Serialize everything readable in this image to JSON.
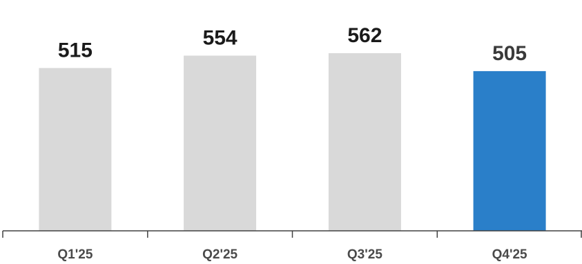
{
  "chart_data": {
    "type": "bar",
    "categories": [
      "Q1'25",
      "Q2'25",
      "Q3'25",
      "Q4'25"
    ],
    "values": [
      515,
      554,
      562,
      505
    ],
    "data_labels": [
      "515",
      "554",
      "562",
      "505"
    ],
    "title": "",
    "xlabel": "",
    "ylabel": "",
    "ylim": [
      0,
      730
    ],
    "grid": false,
    "legend": "none",
    "colors": {
      "bar_default": "#d9d9d9",
      "bar_highlight": "#2a7fc9",
      "axis": "#404040"
    },
    "highlight_index": 3
  }
}
